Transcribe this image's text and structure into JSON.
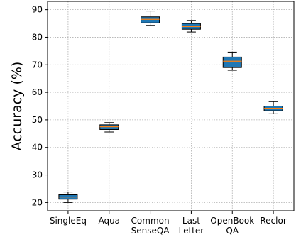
{
  "chart_data": {
    "type": "box",
    "title": "",
    "xlabel": "",
    "ylabel": "Accuracy (%)",
    "ylim": [
      17,
      93
    ],
    "yticks": [
      20,
      30,
      40,
      50,
      60,
      70,
      80,
      90
    ],
    "grid": true,
    "box_color": "#1f77b4",
    "median_color": "#ff7f0e",
    "categories": [
      {
        "label": [
          "SingleEq"
        ],
        "whisker_low": 20.0,
        "q1": 21.2,
        "median": 22.0,
        "q3": 22.8,
        "whisker_high": 23.8
      },
      {
        "label": [
          "Aqua"
        ],
        "whisker_low": 45.6,
        "q1": 46.5,
        "median": 47.5,
        "q3": 48.2,
        "whisker_high": 49.0
      },
      {
        "label": [
          "Common",
          "SenseQA"
        ],
        "whisker_low": 84.3,
        "q1": 85.2,
        "median": 86.5,
        "q3": 87.4,
        "whisker_high": 89.5
      },
      {
        "label": [
          "Last",
          "Letter"
        ],
        "whisker_low": 81.9,
        "q1": 82.9,
        "median": 83.9,
        "q3": 85.0,
        "whisker_high": 86.1
      },
      {
        "label": [
          "OpenBook",
          "QA"
        ],
        "whisker_low": 68.0,
        "q1": 69.0,
        "median": 71.3,
        "q3": 72.8,
        "whisker_high": 74.6
      },
      {
        "label": [
          "Reclor"
        ],
        "whisker_low": 52.2,
        "q1": 53.3,
        "median": 54.2,
        "q3": 55.0,
        "whisker_high": 56.6
      }
    ]
  }
}
